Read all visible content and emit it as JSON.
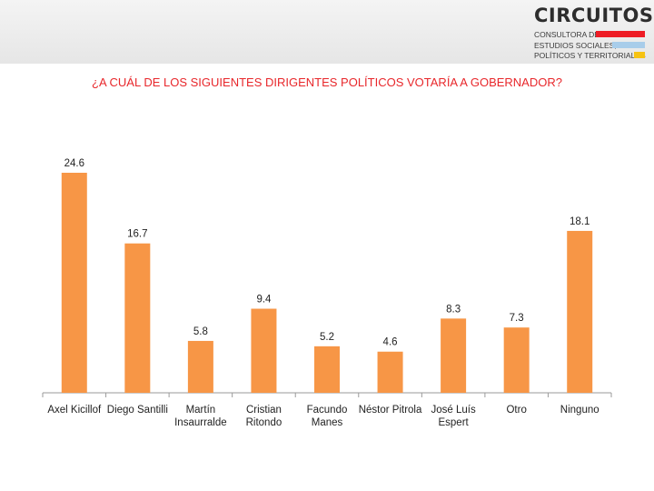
{
  "logo": {
    "name": "CIRCUITOS",
    "line1": "CONSULTORA DE",
    "line2": "ESTUDIOS SOCIALES,",
    "line3": "POLÍTICOS Y TERRITORIALES",
    "colors": [
      "#ee1c25",
      "#a8cdea",
      "#f6c313"
    ]
  },
  "chart_data": {
    "type": "bar",
    "title": "¿A CUÁL DE LOS SIGUIENTES DIRIGENTES POLÍTICOS VOTARÍA A GOBERNADOR?",
    "categories": [
      [
        "Axel Kicillof"
      ],
      [
        "Diego Santilli"
      ],
      [
        "Martín",
        "Insaurralde"
      ],
      [
        "Cristian",
        "Ritondo"
      ],
      [
        "Facundo",
        "Manes"
      ],
      [
        "Néstor Pitrola"
      ],
      [
        "José Luís",
        "Espert"
      ],
      [
        "Otro"
      ],
      [
        "Ninguno"
      ]
    ],
    "values": [
      24.6,
      16.7,
      5.8,
      9.4,
      5.2,
      4.6,
      8.3,
      7.3,
      18.1
    ],
    "value_labels": [
      "24.6",
      "16.7",
      "5.8",
      "9.4",
      "5.2",
      "4.6",
      "8.3",
      "7.3",
      "18.1"
    ],
    "xlabel": "",
    "ylabel": "",
    "ylim": [
      0,
      26
    ],
    "grid": false,
    "legend": "none",
    "bar_color": "#f79646"
  }
}
